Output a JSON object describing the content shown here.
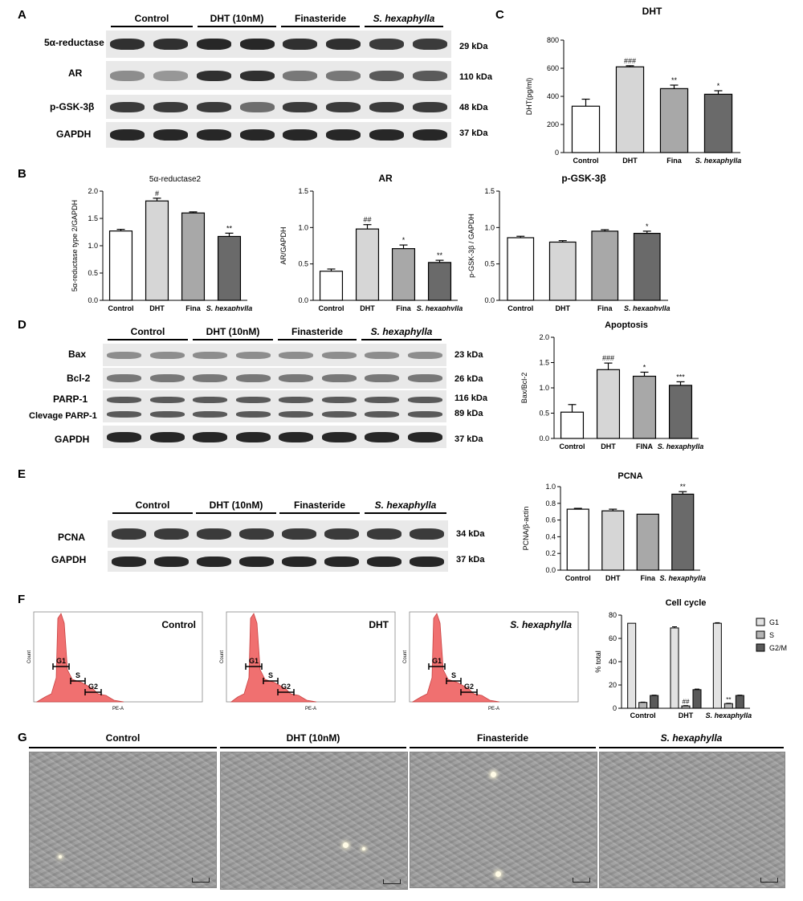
{
  "panel_labels": {
    "A": "A",
    "B": "B",
    "C": "C",
    "D": "D",
    "E": "E",
    "F": "F",
    "G": "G"
  },
  "panel_a": {
    "groups": [
      "Control",
      "DHT (10nM)",
      "Finasteride",
      "S. hexaphylla"
    ],
    "rows": [
      {
        "label": "5α-reductase",
        "kda": "29 kDa"
      },
      {
        "label": "AR",
        "kda": "110 kDa"
      },
      {
        "label": "p-GSK-3β",
        "kda": "48 kDa"
      },
      {
        "label": "GAPDH",
        "kda": "37 kDa"
      }
    ],
    "band_intensity": [
      [
        0.9,
        0.9,
        0.95,
        0.95,
        0.9,
        0.9,
        0.85,
        0.85
      ],
      [
        0.45,
        0.4,
        0.9,
        0.9,
        0.55,
        0.55,
        0.7,
        0.7
      ],
      [
        0.85,
        0.85,
        0.85,
        0.6,
        0.85,
        0.85,
        0.85,
        0.85
      ],
      [
        0.95,
        0.95,
        0.95,
        0.95,
        0.95,
        0.95,
        0.95,
        0.95
      ]
    ]
  },
  "panel_d": {
    "groups": [
      "Control",
      "DHT (10nM)",
      "Finasteride",
      "S. hexaphylla"
    ],
    "rows": [
      {
        "label": "Bax",
        "kda": "23 kDa"
      },
      {
        "label": "Bcl-2",
        "kda": "26 kDa"
      },
      {
        "label": "PARP-1",
        "kda": "116 kDa"
      },
      {
        "label": "Clevage PARP-1",
        "kda": "89 kDa"
      },
      {
        "label": "GAPDH",
        "kda": "37 kDa"
      }
    ]
  },
  "panel_e": {
    "groups": [
      "Control",
      "DHT (10nM)",
      "Finasteride",
      "S. hexaphylla"
    ],
    "rows": [
      {
        "label": "PCNA",
        "kda": "34 kDa"
      },
      {
        "label": "GAPDH",
        "kda": "37 kDa"
      }
    ]
  },
  "panel_f": {
    "histograms": [
      {
        "title": "Control",
        "g1": "G1",
        "s": "S",
        "g2": "G2",
        "xlabel": "PE-A",
        "ylabel": "Count"
      },
      {
        "title": "DHT",
        "g1": "G1",
        "s": "S",
        "g2": "G2",
        "xlabel": "PE-A",
        "ylabel": "Count"
      },
      {
        "title": "S. hexaphylla",
        "g1": "G1",
        "s": "S",
        "g2": "G2",
        "xlabel": "PE-A",
        "ylabel": "Count"
      }
    ]
  },
  "panel_g": {
    "labels": [
      "Control",
      "DHT (10nM)",
      "Finasteride",
      "S. hexaphylla"
    ]
  },
  "colors": {
    "white_bar": "#ffffff",
    "light_bar": "#d6d6d6",
    "mid_bar": "#a8a8a8",
    "dark_bar": "#6a6a6a",
    "darkest_bar": "#4a4a4a",
    "flow_fill": "#f07070"
  },
  "chart_data": [
    {
      "id": "C",
      "type": "bar",
      "title": "DHT",
      "ylabel": "DHT(pg/ml)",
      "categories": [
        "Control",
        "DHT",
        "Fina",
        "S. hexaphylla"
      ],
      "values": [
        330,
        610,
        455,
        415
      ],
      "errors": [
        50,
        8,
        25,
        25
      ],
      "annotations": [
        "",
        "###",
        "**",
        "*"
      ],
      "ylim": [
        0,
        800
      ],
      "yticks": [
        0,
        200,
        400,
        600,
        800
      ]
    },
    {
      "id": "B1",
      "type": "bar",
      "title": "5α-reductase2",
      "ylabel": "5α-reductase type 2/GAPDH",
      "categories": [
        "Control",
        "DHT",
        "Fina",
        "S. hexaphylla"
      ],
      "values": [
        1.27,
        1.82,
        1.6,
        1.17
      ],
      "errors": [
        0.03,
        0.05,
        0.02,
        0.06
      ],
      "annotations": [
        "",
        "#",
        "",
        "**"
      ],
      "ylim": [
        0,
        2.0
      ],
      "yticks": [
        0.0,
        0.5,
        1.0,
        1.5,
        2.0
      ]
    },
    {
      "id": "B2",
      "type": "bar",
      "title": "AR",
      "ylabel": "AR/GAPDH",
      "categories": [
        "Control",
        "DHT",
        "Fina",
        "S. hexaphylla"
      ],
      "values": [
        0.4,
        0.98,
        0.71,
        0.52
      ],
      "errors": [
        0.03,
        0.06,
        0.05,
        0.03
      ],
      "annotations": [
        "",
        "##",
        "*",
        "**"
      ],
      "ylim": [
        0,
        1.5
      ],
      "yticks": [
        0.0,
        0.5,
        1.0,
        1.5
      ]
    },
    {
      "id": "B3",
      "type": "bar",
      "title": "p-GSK-3β",
      "ylabel": "p-GSK-3β / GAPDH",
      "categories": [
        "Control",
        "DHT",
        "Fina",
        "S. hexaphylla"
      ],
      "values": [
        0.86,
        0.8,
        0.95,
        0.92
      ],
      "errors": [
        0.02,
        0.02,
        0.02,
        0.03
      ],
      "annotations": [
        "",
        "",
        "",
        "*"
      ],
      "ylim": [
        0,
        1.5
      ],
      "yticks": [
        0.0,
        0.5,
        1.0,
        1.5
      ]
    },
    {
      "id": "D",
      "type": "bar",
      "title": "Apoptosis",
      "ylabel": "Bax/Bcl-2",
      "categories": [
        "Control",
        "DHT",
        "FINA",
        "S. hexaphylla"
      ],
      "values": [
        0.52,
        1.36,
        1.23,
        1.05
      ],
      "errors": [
        0.15,
        0.13,
        0.08,
        0.07
      ],
      "annotations": [
        "",
        "###",
        "*",
        "***"
      ],
      "ylim": [
        0,
        2.0
      ],
      "yticks": [
        0.0,
        0.5,
        1.0,
        1.5,
        2.0
      ]
    },
    {
      "id": "E",
      "type": "bar",
      "title": "PCNA",
      "ylabel": "PCNA/β-actin",
      "categories": [
        "Control",
        "DHT",
        "Fina",
        "S. hexaphylla"
      ],
      "values": [
        0.73,
        0.71,
        0.67,
        0.91
      ],
      "errors": [
        0.01,
        0.02,
        0.0,
        0.03
      ],
      "annotations": [
        "",
        "",
        "",
        "**"
      ],
      "ylim": [
        0,
        1.0
      ],
      "yticks": [
        0.0,
        0.2,
        0.4,
        0.6,
        0.8,
        1.0
      ]
    },
    {
      "id": "F",
      "type": "bar",
      "title": "Cell cycle",
      "ylabel": "% total",
      "categories": [
        "Control",
        "DHT",
        "S. hexaphylla"
      ],
      "series": [
        {
          "name": "G1",
          "values": [
            73,
            69,
            73
          ],
          "errors": [
            0,
            1,
            0.5
          ],
          "annotations": [
            "",
            "",
            ""
          ]
        },
        {
          "name": "S",
          "values": [
            5,
            2,
            4
          ],
          "errors": [
            0.3,
            0.3,
            0.3
          ],
          "annotations": [
            "",
            "##",
            "**"
          ]
        },
        {
          "name": "G2/M",
          "values": [
            11,
            16,
            11
          ],
          "errors": [
            0.3,
            0.5,
            0.3
          ],
          "annotations": [
            "",
            "",
            ""
          ]
        }
      ],
      "ylim": [
        0,
        80
      ],
      "yticks": [
        0,
        20,
        40,
        60,
        80
      ],
      "legend": "right"
    }
  ]
}
